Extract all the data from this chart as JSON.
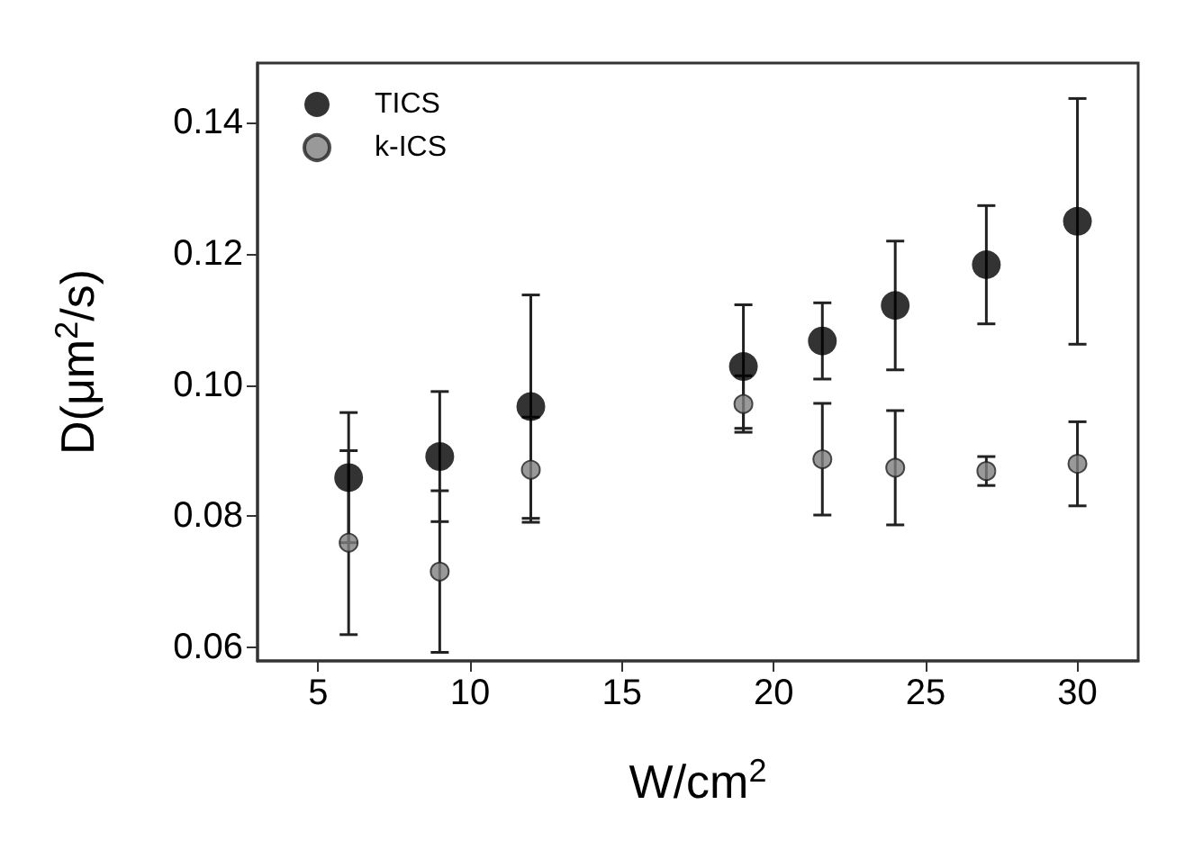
{
  "chart_data": {
    "type": "scatter",
    "xlabel": "W/cm$^{2}$",
    "ylabel": "D(μm$^{2}$/s)",
    "xlim": [
      3,
      32
    ],
    "xticks": [
      5,
      10,
      15,
      20,
      25,
      30
    ],
    "ylim": [
      0.058,
      0.149
    ],
    "yticks": [
      0.06,
      0.08,
      {
        "value": 0.1,
        "label": "0.10"
      },
      0.12,
      0.14
    ],
    "x": [
      6,
      9,
      12,
      19,
      21.6,
      24,
      27,
      30
    ],
    "series": [
      {
        "name": "TICS",
        "color": "#000000",
        "values": [
          0.0859,
          0.0891,
          0.0967,
          0.1028,
          0.1067,
          0.1121,
          0.1183,
          0.1249
        ],
        "errors": [
          0.0099,
          0.0099,
          0.017,
          0.0094,
          0.0058,
          0.0098,
          0.009,
          0.0187
        ]
      },
      {
        "name": "k-ICS",
        "color": "#808080",
        "values": [
          0.076,
          0.0716,
          0.0871,
          0.0971,
          0.0887,
          0.0874,
          0.0869,
          0.088
        ],
        "errors": [
          0.014,
          0.0123,
          0.008,
          0.0043,
          0.0085,
          0.0087,
          0.0022,
          0.0064
        ]
      }
    ],
    "legend": "top left",
    "marker": "circle",
    "grid": false
  }
}
